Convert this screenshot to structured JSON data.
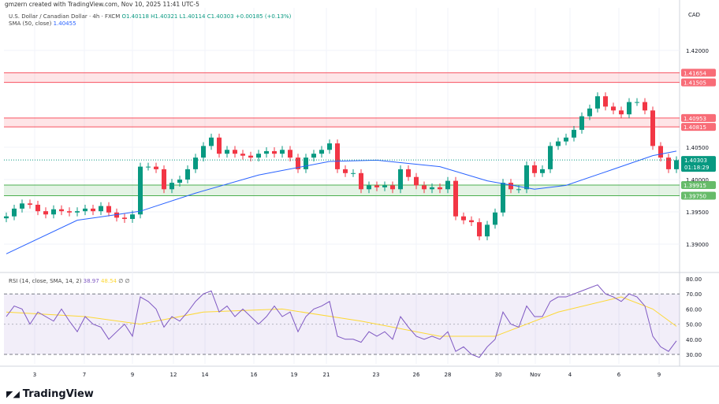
{
  "credit": "gmzern created with TradingView.com, Nov 10, 2025 11:41 UTC-5",
  "legend": {
    "symbol": "U.S. Dollar / Canadian Dollar · 4h · FXCM",
    "o": "O1.40118",
    "h": "H1.40321",
    "l": "L1.40114",
    "c": "C1.40303",
    "chg": "+0.00185 (+0.13%)"
  },
  "sma_legend": {
    "label": "SMA (50, close)",
    "value": "1.40455"
  },
  "rsi_legend": {
    "label": "RSI (14, close, SMA, 14, 2)",
    "rsi": "38.97",
    "ma": "48.54",
    "extra": "∅ ∅"
  },
  "currency": "CAD",
  "logo": "TradingView",
  "colors": {
    "up": "#089981",
    "down": "#f23645",
    "sma": "#2962ff",
    "rsi": "#7e57c2",
    "rsi_ma": "#fdd835",
    "resistance": "#f7525f",
    "support": "#4caf50"
  },
  "chart_data": {
    "type": "candlestick",
    "ylim": [
      1.3865,
      1.4245
    ],
    "price_ticks": [
      "1.42000",
      "1.40500",
      "1.40000",
      "1.39500",
      "1.39000"
    ],
    "x_ticks": [
      "3",
      "7",
      "9",
      "12",
      "14",
      "16",
      "19",
      "21",
      "23",
      "26",
      "28",
      "30",
      "Nov",
      "4",
      "6",
      "9"
    ],
    "first_open": 1.394,
    "closes": [
      1.3943,
      1.3955,
      1.3963,
      1.3961,
      1.3951,
      1.3946,
      1.3954,
      1.3951,
      1.3949,
      1.3951,
      1.3955,
      1.3951,
      1.3959,
      1.3949,
      1.3941,
      1.3939,
      1.3946,
      1.402,
      1.402,
      1.4016,
      1.3985,
      1.3995,
      1.4,
      1.4016,
      1.4034,
      1.4052,
      1.4065,
      1.404,
      1.4046,
      1.404,
      1.4037,
      1.4034,
      1.404,
      1.4044,
      1.404,
      1.4046,
      1.4034,
      1.4016,
      1.4034,
      1.404,
      1.4046,
      1.4056,
      1.4016,
      1.401,
      1.401,
      1.3985,
      1.3991,
      1.3988,
      1.3991,
      1.3985,
      1.4016,
      1.4004,
      1.3991,
      1.3985,
      1.3988,
      1.3985,
      1.3998,
      1.3943,
      1.3937,
      1.3934,
      1.3912,
      1.393,
      1.3949,
      1.3995,
      1.3985,
      1.3985,
      1.4022,
      1.401,
      1.4016,
      1.4052,
      1.4059,
      1.4065,
      1.4077,
      1.4098,
      1.411,
      1.4129,
      1.4113,
      1.4107,
      1.4101,
      1.412,
      1.412,
      1.4107,
      1.4052,
      1.4034,
      1.4016,
      1.403
    ],
    "sma50": [
      [
        0,
        1.3885
      ],
      [
        9,
        1.3937
      ],
      [
        17,
        1.3951
      ],
      [
        24,
        1.3979
      ],
      [
        32,
        1.4007
      ],
      [
        41,
        1.4028
      ],
      [
        47,
        1.403
      ],
      [
        55,
        1.402
      ],
      [
        61,
        1.3998
      ],
      [
        67,
        1.3985
      ],
      [
        71,
        1.3991
      ],
      [
        77,
        1.4016
      ],
      [
        82,
        1.4037
      ],
      [
        85,
        1.4044
      ]
    ],
    "zones": [
      {
        "kind": "resistance",
        "top": 1.41654,
        "bottom": 1.41505,
        "labels": [
          "1.41654",
          "1.41505"
        ]
      },
      {
        "kind": "resistance",
        "top": 1.40953,
        "bottom": 1.40815,
        "labels": [
          "1.40953",
          "1.40815"
        ]
      },
      {
        "kind": "support",
        "top": 1.39915,
        "bottom": 1.3975,
        "labels": [
          "1.39915",
          "1.39750"
        ]
      }
    ],
    "last": {
      "price": "1.40303",
      "countdown": "01:18:29"
    },
    "rsi": {
      "ylim": [
        25,
        82
      ],
      "ticks": [
        "80.00",
        "70.00",
        "60.00",
        "50.00",
        "40.00",
        "30.00"
      ],
      "bands": [
        70,
        30
      ],
      "values": [
        55,
        62,
        60,
        50,
        58,
        55,
        52,
        60,
        52,
        45,
        55,
        50,
        48,
        40,
        45,
        50,
        42,
        68,
        65,
        60,
        48,
        55,
        52,
        58,
        65,
        70,
        72,
        58,
        62,
        55,
        60,
        55,
        50,
        55,
        62,
        55,
        58,
        45,
        55,
        60,
        62,
        65,
        42,
        40,
        40,
        38,
        45,
        42,
        45,
        40,
        55,
        48,
        42,
        40,
        42,
        40,
        45,
        32,
        35,
        30,
        28,
        35,
        40,
        58,
        50,
        48,
        62,
        55,
        55,
        65,
        68,
        68,
        70,
        72,
        74,
        76,
        70,
        68,
        65,
        70,
        68,
        62,
        42,
        35,
        32,
        38.97
      ],
      "ma": [
        [
          0,
          58
        ],
        [
          10,
          55
        ],
        [
          17,
          50
        ],
        [
          25,
          58
        ],
        [
          35,
          60
        ],
        [
          45,
          52
        ],
        [
          55,
          42
        ],
        [
          62,
          42
        ],
        [
          70,
          58
        ],
        [
          78,
          68
        ],
        [
          82,
          60
        ],
        [
          85,
          48.54
        ]
      ]
    }
  }
}
